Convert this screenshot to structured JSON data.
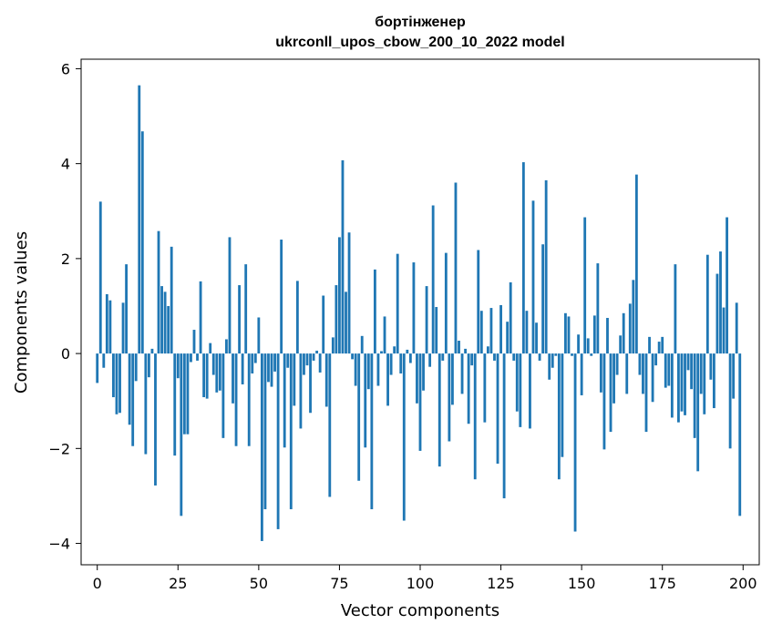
{
  "chart_data": {
    "type": "bar",
    "title_line1": "бортінженер",
    "title_line2": "ukrconll_upos_cbow_200_10_2022 model",
    "xlabel": "Vector components",
    "ylabel": "Components values",
    "xlim": [
      -5,
      205
    ],
    "ylim": [
      -4.45,
      6.2
    ],
    "xticks": [
      0,
      25,
      50,
      75,
      100,
      125,
      150,
      175,
      200
    ],
    "yticks": [
      -4,
      -2,
      0,
      2,
      4,
      6
    ],
    "ytick_labels": [
      "−4",
      "−2",
      "0",
      "2",
      "4",
      "6"
    ],
    "bar_color": "#1f77b4",
    "grid": false,
    "values": [
      -0.62,
      3.2,
      -0.3,
      1.25,
      1.12,
      -0.92,
      -1.28,
      -1.25,
      1.07,
      1.88,
      -1.5,
      -1.95,
      -0.58,
      5.65,
      4.68,
      -2.12,
      -0.5,
      0.1,
      -2.78,
      2.58,
      1.42,
      1.3,
      1.0,
      2.25,
      -2.15,
      -0.52,
      -3.42,
      -1.7,
      -1.7,
      -0.18,
      0.5,
      -0.15,
      1.52,
      -0.92,
      -0.95,
      0.22,
      -0.45,
      -0.82,
      -0.78,
      -1.78,
      0.3,
      2.45,
      -1.05,
      -1.95,
      1.44,
      -0.65,
      1.88,
      -1.95,
      -0.42,
      -0.2,
      0.76,
      -3.95,
      -3.28,
      -0.6,
      -0.7,
      -0.38,
      -3.7,
      2.4,
      -1.98,
      -0.3,
      -3.28,
      -1.1,
      1.53,
      -1.58,
      -0.45,
      -0.25,
      -1.25,
      -0.15,
      0.06,
      -0.4,
      1.22,
      -1.12,
      -3.02,
      0.34,
      1.44,
      2.45,
      4.07,
      1.3,
      2.55,
      -0.12,
      -0.68,
      -2.68,
      0.37,
      -1.98,
      -0.75,
      -3.28,
      1.77,
      -0.68,
      0.05,
      0.78,
      -1.1,
      -0.45,
      0.15,
      2.1,
      -0.42,
      -3.52,
      0.08,
      -0.2,
      1.92,
      -1.05,
      -2.05,
      -0.78,
      1.42,
      -0.28,
      3.12,
      0.98,
      -2.38,
      -0.15,
      2.12,
      -1.85,
      -1.08,
      3.6,
      0.27,
      -0.85,
      0.1,
      -1.48,
      -0.25,
      -2.65,
      2.18,
      0.9,
      -1.45,
      0.15,
      0.96,
      -0.15,
      -2.32,
      1.02,
      -3.05,
      0.67,
      1.5,
      -0.15,
      -1.22,
      -1.55,
      4.03,
      0.9,
      -1.58,
      3.22,
      0.65,
      -0.15,
      2.3,
      3.65,
      -0.55,
      -0.3,
      -0.05,
      -2.65,
      -2.18,
      0.85,
      0.78,
      -0.05,
      -3.75,
      0.4,
      -0.88,
      2.87,
      0.32,
      -0.05,
      0.8,
      1.9,
      -0.82,
      -2.02,
      0.75,
      -1.65,
      -1.05,
      -0.45,
      0.38,
      0.85,
      -0.85,
      1.05,
      1.55,
      3.77,
      -0.45,
      -0.85,
      -1.65,
      0.35,
      -1.02,
      -0.25,
      0.25,
      0.35,
      -0.72,
      -0.68,
      -1.35,
      1.88,
      -1.45,
      -1.22,
      -1.3,
      -0.35,
      -0.75,
      -1.78,
      -2.48,
      -0.85,
      -1.28,
      2.08,
      -0.55,
      -1.15,
      1.68,
      2.15,
      0.97,
      2.87,
      -2.0,
      -0.95,
      1.07,
      -3.42
    ]
  }
}
